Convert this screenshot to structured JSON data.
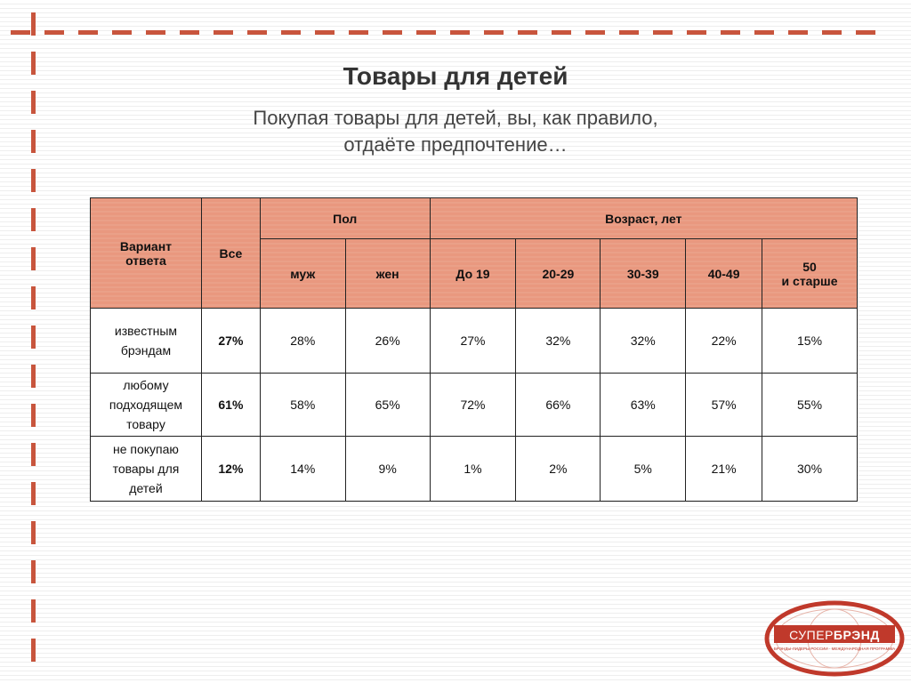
{
  "title": "Товары для детей",
  "subtitle": {
    "line1": "Покупая товары для детей, вы, как правило,",
    "line2": "отдаёте предпочтение…"
  },
  "colors": {
    "accent": "#c8553d",
    "header_fill": "#e9987f",
    "logo_red": "#c0392b"
  },
  "table": {
    "header": {
      "variant": [
        "Вариант",
        "ответа"
      ],
      "total": "Все",
      "gender_group": "Пол",
      "age_group": "Возраст, лет",
      "gender": [
        "муж",
        "жен"
      ],
      "age": [
        "До 19",
        "20-29",
        "30-39",
        "40-49"
      ],
      "age_last": [
        "50",
        "и старше"
      ]
    },
    "rows": [
      {
        "variant": [
          "известным",
          "брэндам"
        ],
        "total": "27%",
        "values": [
          "28%",
          "26%",
          "27%",
          "32%",
          "32%",
          "22%",
          "15%"
        ]
      },
      {
        "variant": [
          "любому",
          "подходящем",
          "товару"
        ],
        "total": "61%",
        "values": [
          "58%",
          "65%",
          "72%",
          "66%",
          "63%",
          "57%",
          "55%"
        ]
      },
      {
        "variant": [
          "не покупаю",
          "товары для",
          "детей"
        ],
        "total": "12%",
        "values": [
          "14%",
          "9%",
          "1%",
          "2%",
          "5%",
          "21%",
          "30%"
        ]
      }
    ]
  },
  "logo": {
    "name_light": "СУПЕР",
    "name_bold": "БРЭНД",
    "tagline": "БРЭНДЫ-ЛИДЕРЫ РОССИИ · МЕЖДУНАРОДНАЯ ПРОГРАММА"
  }
}
